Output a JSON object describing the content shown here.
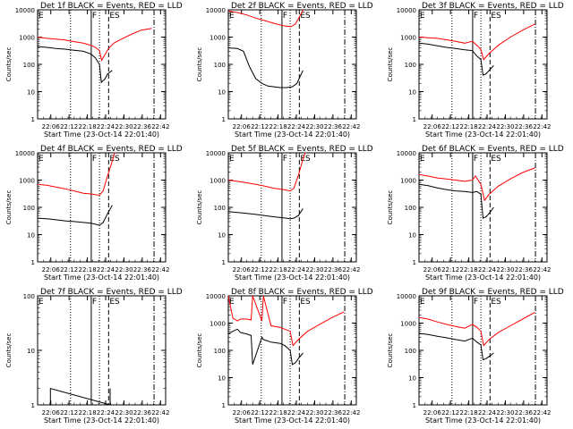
{
  "colors": {
    "events": "#000000",
    "lld": "#ff0000",
    "background": "#ffffff"
  },
  "x_tick_labels": [
    "22:06",
    "22:12",
    "22:18",
    "22:24",
    "22:30",
    "22:36",
    "22:42"
  ],
  "x_tick_minutes": [
    4.33,
    10.33,
    16.33,
    22.33,
    28.33,
    34.33,
    40.33
  ],
  "x_axis_label": "Start Time (23-Oct-14 22:01:40)",
  "y_axis_label": "Counts/sec",
  "x_range_minutes": [
    0,
    42
  ],
  "markers": {
    "labels": [
      "E",
      "F",
      "ES"
    ],
    "E_min": 0.0,
    "dotted1_min": 10.8,
    "F_min": 17.6,
    "dotted2_min": 20.3,
    "ES_min": 23.3,
    "dashdot_min": 38.2
  },
  "chart_data": [
    {
      "type": "line",
      "panel": "1f",
      "title": "Det 1f BLACK = Events, RED = LLD",
      "ylabels": [
        "1",
        "10",
        "100",
        "1000",
        "10000"
      ],
      "ylim": [
        1,
        10000
      ],
      "yscale": "log",
      "series": [
        {
          "name": "BLACK = Events",
          "color": "#000000",
          "x": [
            0,
            3,
            6,
            9,
            12,
            15,
            17.5,
            19,
            20.3,
            20.9,
            21.4,
            22,
            23,
            24.5
          ],
          "y": [
            450,
            420,
            380,
            360,
            330,
            300,
            240,
            170,
            100,
            22,
            25,
            28,
            45,
            60
          ]
        },
        {
          "name": "RED = LLD",
          "color": "#ff0000",
          "x": [
            0,
            3,
            6,
            9,
            12,
            15,
            17.5,
            19,
            20.3,
            21,
            22,
            23.3,
            25,
            28,
            31,
            34,
            37.5
          ],
          "y": [
            1000,
            900,
            850,
            780,
            680,
            600,
            500,
            420,
            320,
            140,
            220,
            380,
            600,
            900,
            1300,
            1800,
            2100
          ]
        }
      ]
    },
    {
      "type": "line",
      "panel": "2f",
      "title": "Det 2f BLACK = Events, RED = LLD",
      "ylabels": [
        "1",
        "10",
        "100",
        "1000",
        "10000"
      ],
      "ylim": [
        1,
        10000
      ],
      "yscale": "log",
      "series": [
        {
          "name": "BLACK = Events",
          "color": "#000000",
          "x": [
            0,
            3,
            5,
            7,
            9,
            11,
            13,
            15,
            17,
            19,
            21,
            22.5,
            24.5
          ],
          "y": [
            400,
            380,
            300,
            80,
            30,
            20,
            16,
            15,
            14,
            14,
            15,
            20,
            60
          ]
        },
        {
          "name": "RED = LLD",
          "color": "#ff0000",
          "x": [
            0,
            3,
            6,
            9,
            12,
            15,
            18,
            20.5,
            22,
            23.5,
            25
          ],
          "y": [
            9000,
            8000,
            6500,
            5000,
            4000,
            3200,
            2600,
            2400,
            3000,
            6000,
            12000
          ]
        }
      ]
    },
    {
      "type": "line",
      "panel": "3f",
      "title": "Det 3f BLACK = Events, RED = LLD",
      "ylabels": [
        "1",
        "10",
        "100",
        "1000",
        "10000"
      ],
      "ylim": [
        1,
        10000
      ],
      "yscale": "log",
      "series": [
        {
          "name": "BLACK = Events",
          "color": "#000000",
          "x": [
            0,
            3,
            6,
            9,
            12,
            15,
            17.5,
            19,
            20.3,
            21,
            22,
            23,
            24.5
          ],
          "y": [
            600,
            550,
            480,
            420,
            380,
            340,
            320,
            200,
            150,
            40,
            45,
            60,
            90
          ]
        },
        {
          "name": "RED = LLD",
          "color": "#ff0000",
          "x": [
            0,
            3,
            6,
            9,
            12,
            15,
            17.5,
            19,
            20.3,
            21.2,
            23,
            26,
            30,
            34,
            38
          ],
          "y": [
            1000,
            950,
            900,
            800,
            700,
            600,
            700,
            500,
            350,
            150,
            250,
            500,
            1000,
            1800,
            3000
          ]
        }
      ]
    },
    {
      "type": "line",
      "panel": "4f",
      "title": "Det 4f BLACK = Events, RED = LLD",
      "ylabels": [
        "1",
        "10",
        "100",
        "1000",
        "10000"
      ],
      "ylim": [
        1,
        10000
      ],
      "yscale": "log",
      "series": [
        {
          "name": "BLACK = Events",
          "color": "#000000",
          "x": [
            0,
            3,
            6,
            9,
            12,
            15,
            17.5,
            19,
            20.3,
            21.5,
            23,
            24.5
          ],
          "y": [
            40,
            38,
            35,
            32,
            30,
            28,
            26,
            24,
            22,
            28,
            60,
            120
          ]
        },
        {
          "name": "RED = LLD",
          "color": "#ff0000",
          "x": [
            0,
            3,
            6,
            9,
            12,
            15,
            17.5,
            19,
            20.3,
            21.5,
            23,
            24.5,
            25.5
          ],
          "y": [
            700,
            650,
            560,
            480,
            400,
            330,
            310,
            290,
            280,
            400,
            1500,
            5000,
            12000
          ]
        }
      ]
    },
    {
      "type": "line",
      "panel": "5f",
      "title": "Det 5f BLACK = Events, RED = LLD",
      "ylabels": [
        "1",
        "10",
        "100",
        "1000",
        "10000"
      ],
      "ylim": [
        1,
        10000
      ],
      "yscale": "log",
      "series": [
        {
          "name": "BLACK = Events",
          "color": "#000000",
          "x": [
            0,
            3,
            6,
            9,
            12,
            15,
            17.5,
            19,
            20.3,
            21.5,
            23,
            24.5
          ],
          "y": [
            70,
            65,
            60,
            55,
            50,
            45,
            42,
            40,
            38,
            40,
            50,
            90
          ]
        },
        {
          "name": "RED = LLD",
          "color": "#ff0000",
          "x": [
            0,
            3,
            6,
            9,
            12,
            15,
            17.5,
            19,
            20.3,
            21.5,
            23,
            24.5,
            25.5
          ],
          "y": [
            1000,
            900,
            800,
            700,
            600,
            500,
            460,
            430,
            400,
            500,
            1500,
            6000,
            12000
          ]
        }
      ]
    },
    {
      "type": "line",
      "panel": "6f",
      "title": "Det 6f BLACK = Events, RED = LLD",
      "ylabels": [
        "1",
        "10",
        "100",
        "1000",
        "10000"
      ],
      "ylim": [
        1,
        10000
      ],
      "yscale": "log",
      "series": [
        {
          "name": "BLACK = Events",
          "color": "#000000",
          "x": [
            0,
            3,
            6,
            9,
            12,
            15,
            17.5,
            19,
            20.3,
            21,
            22,
            23,
            24.5
          ],
          "y": [
            700,
            620,
            520,
            450,
            400,
            380,
            350,
            380,
            300,
            40,
            45,
            60,
            100
          ]
        },
        {
          "name": "RED = LLD",
          "color": "#ff0000",
          "x": [
            0,
            3,
            6,
            9,
            12,
            15,
            17.5,
            18.5,
            20.3,
            21.5,
            23,
            26,
            30,
            34,
            38
          ],
          "y": [
            1600,
            1400,
            1200,
            1100,
            1000,
            900,
            1000,
            1400,
            700,
            180,
            300,
            600,
            1100,
            1900,
            2800
          ]
        }
      ]
    },
    {
      "type": "line",
      "panel": "7f",
      "title": "Det 7f BLACK = Events, RED = LLD",
      "ylabels": [
        "1",
        "10",
        "100"
      ],
      "ylim": [
        1,
        100
      ],
      "yscale": "log",
      "series": [
        {
          "name": "BLACK = Events",
          "color": "#000000",
          "x": [
            4.2,
            4.2,
            23.8,
            23.8
          ],
          "y": [
            1,
            2,
            1,
            2
          ]
        }
      ]
    },
    {
      "type": "line",
      "panel": "8f",
      "title": "Det 8f BLACK = Events, RED = LLD",
      "ylabels": [
        "1",
        "10",
        "100",
        "1000",
        "10000"
      ],
      "ylim": [
        1,
        10000
      ],
      "yscale": "log",
      "series": [
        {
          "name": "BLACK = Events",
          "color": "#000000",
          "x": [
            0,
            1.5,
            3,
            4,
            6,
            7.5,
            8,
            11,
            11.5,
            14,
            17,
            18.5,
            20.3,
            21,
            22,
            23,
            24.5
          ],
          "y": [
            400,
            500,
            600,
            450,
            400,
            350,
            30,
            300,
            250,
            200,
            180,
            150,
            100,
            30,
            35,
            50,
            80
          ]
        },
        {
          "name": "RED = LLD",
          "color": "#ff0000",
          "x": [
            0,
            1.5,
            3,
            4,
            6,
            7.5,
            8,
            11,
            11.5,
            14,
            17,
            18.5,
            20.3,
            21.2,
            23,
            26,
            30,
            34,
            38
          ],
          "y": [
            10000,
            1500,
            1200,
            1400,
            1400,
            1300,
            10000,
            1200,
            10000,
            800,
            700,
            600,
            500,
            150,
            250,
            500,
            900,
            1600,
            2600
          ]
        }
      ]
    },
    {
      "type": "line",
      "panel": "9f",
      "title": "Det 9f BLACK = Events, RED = LLD",
      "ylabels": [
        "1",
        "10",
        "100",
        "1000",
        "10000"
      ],
      "ylim": [
        1,
        10000
      ],
      "yscale": "log",
      "series": [
        {
          "name": "BLACK = Events",
          "color": "#000000",
          "x": [
            0,
            3,
            6,
            9,
            12,
            15,
            17.5,
            19,
            20.3,
            21,
            22,
            23,
            24.5
          ],
          "y": [
            420,
            380,
            330,
            290,
            250,
            220,
            280,
            200,
            160,
            45,
            50,
            60,
            80
          ]
        },
        {
          "name": "RED = LLD",
          "color": "#ff0000",
          "x": [
            0,
            3,
            6,
            9,
            12,
            15,
            17.5,
            19,
            20.3,
            21.2,
            23,
            26,
            30,
            34,
            38
          ],
          "y": [
            1600,
            1400,
            1100,
            900,
            750,
            650,
            900,
            700,
            500,
            150,
            250,
            450,
            800,
            1400,
            2500
          ]
        }
      ]
    }
  ]
}
